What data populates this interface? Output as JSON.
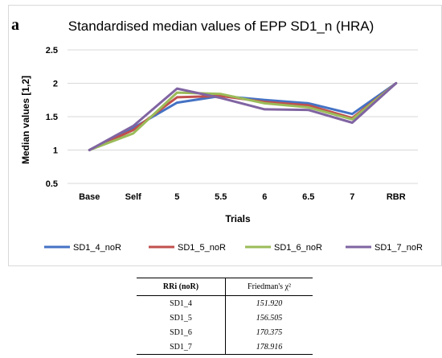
{
  "panel_label": "a",
  "chart_data": {
    "type": "line",
    "title": "Standardised median values of EPP SD1_n (HRA)",
    "xlabel": "Trials",
    "ylabel": "Median values [1,2]",
    "categories": [
      "Base",
      "Self",
      "5",
      "5.5",
      "6",
      "6.5",
      "7",
      "RBR"
    ],
    "ylim": [
      0.5,
      2.5
    ],
    "yticks": [
      "0.5",
      "1",
      "1.5",
      "2",
      "2.5"
    ],
    "grid": true,
    "legend": "bottom",
    "series": [
      {
        "name": "SD1_4_noR",
        "color": "#4472c4",
        "values": [
          1.0,
          1.33,
          1.71,
          1.81,
          1.75,
          1.7,
          1.54,
          2.0
        ]
      },
      {
        "name": "SD1_5_noR",
        "color": "#c0504d",
        "values": [
          1.0,
          1.3,
          1.79,
          1.81,
          1.72,
          1.67,
          1.48,
          2.0
        ]
      },
      {
        "name": "SD1_6_noR",
        "color": "#9bbb59",
        "values": [
          1.0,
          1.25,
          1.86,
          1.84,
          1.7,
          1.64,
          1.46,
          2.0
        ]
      },
      {
        "name": "SD1_7_noR",
        "color": "#8064a2",
        "values": [
          1.0,
          1.36,
          1.92,
          1.78,
          1.61,
          1.6,
          1.41,
          2.0
        ]
      }
    ]
  },
  "table": {
    "headers": [
      "RRi (noR)",
      "Friedman's χ²"
    ],
    "rows": [
      [
        "SD1_4",
        "151.920"
      ],
      [
        "SD1_5",
        "156.505"
      ],
      [
        "SD1_6",
        "170.375"
      ],
      [
        "SD1_7",
        "178.916"
      ]
    ]
  }
}
